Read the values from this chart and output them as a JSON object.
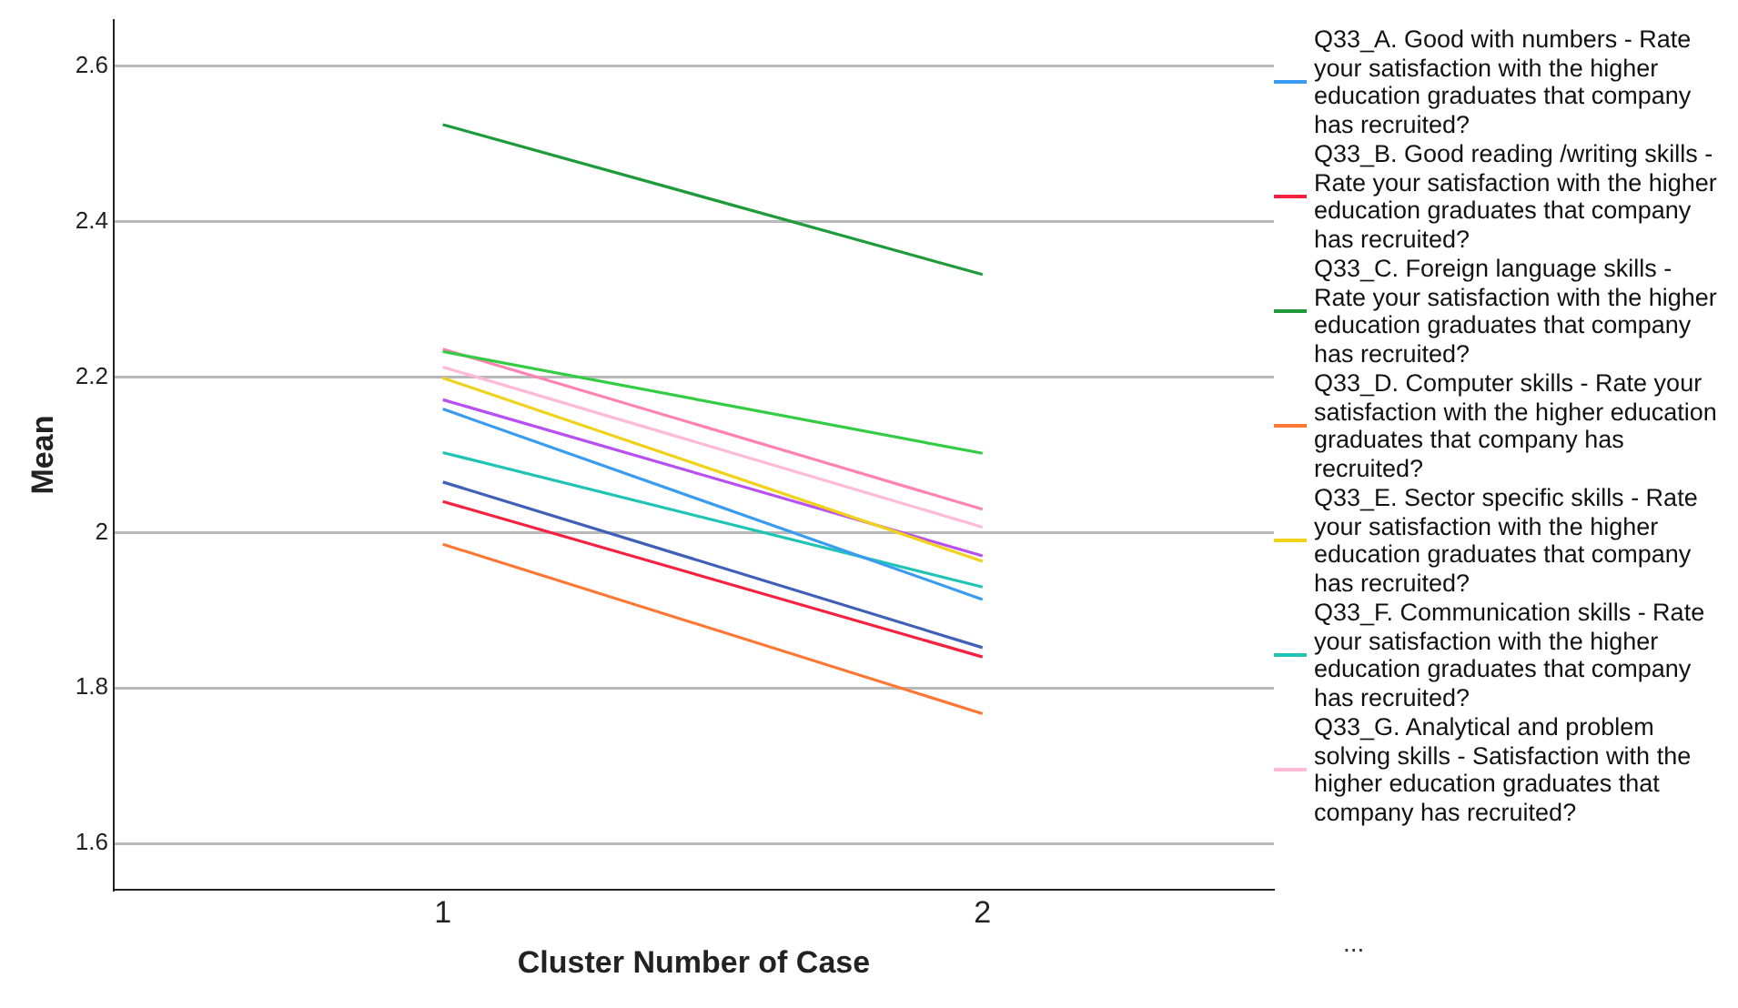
{
  "chart_data": {
    "type": "line",
    "xlabel": "Cluster Number of Case",
    "ylabel": "Mean",
    "x": [
      1,
      2
    ],
    "xlim": [
      0.39,
      2.54
    ],
    "xticks": [
      1,
      2
    ],
    "ylim": [
      1.54,
      2.66
    ],
    "yticks": [
      1.6,
      1.8,
      2.0,
      2.2,
      2.4,
      2.6
    ],
    "grid": "y",
    "legend": "right",
    "marker": "none",
    "line_style": "solid",
    "annotations": [
      "..."
    ],
    "series": [
      {
        "name": "Q33_A. Good with numbers - Rate your satisfaction with the higher education graduates that company has recruited?",
        "color": "#3a9cf0",
        "values": [
          2.159,
          1.914
        ]
      },
      {
        "name": "Q33_B. Good reading /writing skills - Rate your satisfaction with the higher education graduates that company has recruited?",
        "color": "#f5213f",
        "values": [
          2.04,
          1.84
        ]
      },
      {
        "name": "Q33_C. Foreign language skills - Rate your satisfaction with the higher education graduates that company has recruited?",
        "color": "#1f9a3a",
        "values": [
          2.525,
          2.332
        ]
      },
      {
        "name": "Q33_D. Computer skills - Rate your satisfaction with the higher education graduates that company has recruited?",
        "color": "#ff7733",
        "values": [
          1.985,
          1.767
        ]
      },
      {
        "name": "Q33_E. Sector specific skills - Rate your satisfaction with the higher education graduates that company has recruited?",
        "color": "#f0d21a",
        "values": [
          2.199,
          1.963
        ]
      },
      {
        "name": "Q33_F. Communication skills - Rate your satisfaction with the higher education graduates that company has recruited?",
        "color": "#1fc4b4",
        "values": [
          2.103,
          1.93
        ]
      },
      {
        "name": "Q33_G. Analytical and problem solving skills - Satisfaction with the higher education graduates that company has recruited?",
        "color": "#ffbad6",
        "values": [
          2.213,
          2.007
        ]
      },
      {
        "color": "#33cc44",
        "values": [
          2.233,
          2.102
        ]
      },
      {
        "color": "#ff82b0",
        "values": [
          2.236,
          2.03
        ]
      },
      {
        "color": "#b84ff0",
        "values": [
          2.171,
          1.97
        ]
      },
      {
        "color": "#3f5fb8",
        "values": [
          2.065,
          1.852
        ]
      }
    ]
  }
}
